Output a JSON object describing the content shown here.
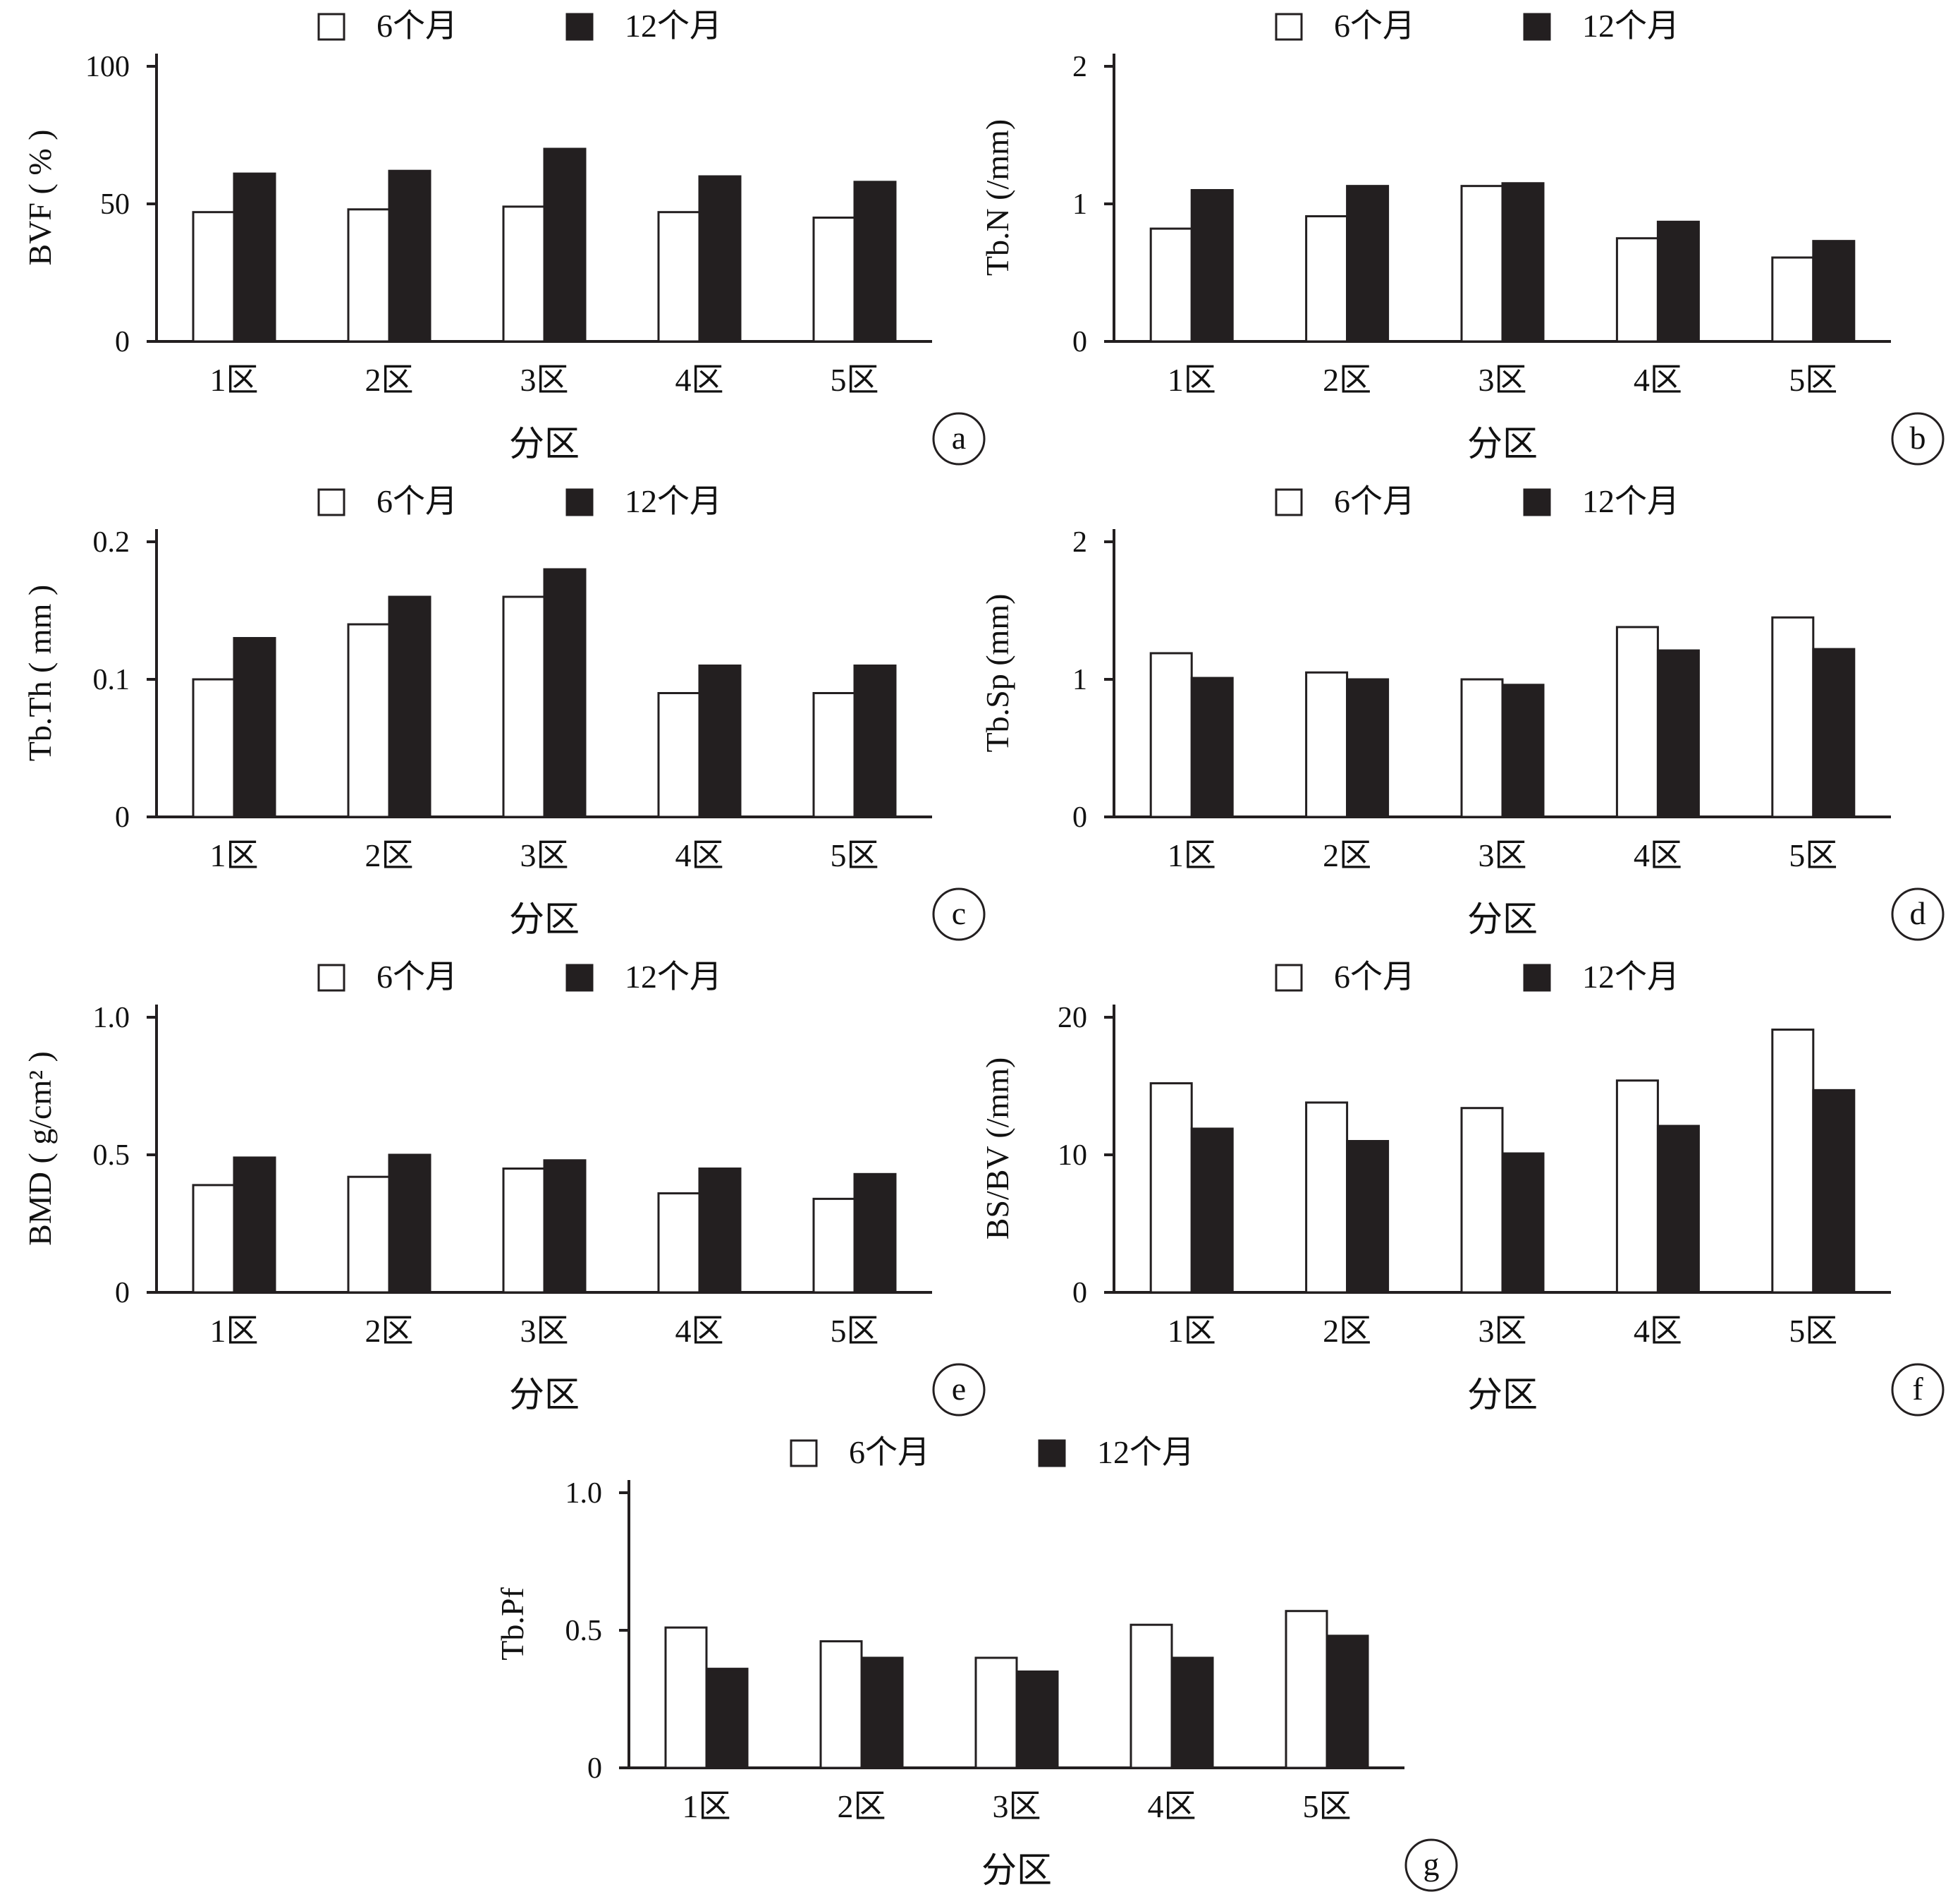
{
  "legend": {
    "six_month": "6个月",
    "twelve_month": "12个月"
  },
  "colors": {
    "six_month": "#ffffff",
    "twelve_month": "#231f20",
    "axis": "#231f20"
  },
  "chart_data": [
    {
      "panel": "a",
      "type": "bar",
      "categories": [
        "1区",
        "2区",
        "3区",
        "4区",
        "5区"
      ],
      "xlabel": "分区",
      "ylabel": "BVF ( % )",
      "ylim": [
        0,
        100
      ],
      "yticks": [
        "0",
        "50",
        "100"
      ],
      "ytick_values": [
        0,
        50,
        100
      ],
      "series": [
        {
          "name": "6个月",
          "values": [
            47,
            48,
            49,
            47,
            45
          ]
        },
        {
          "name": "12个月",
          "values": [
            61,
            62,
            70,
            60,
            58
          ]
        }
      ]
    },
    {
      "panel": "b",
      "type": "bar",
      "categories": [
        "1区",
        "2区",
        "3区",
        "4区",
        "5区"
      ],
      "xlabel": "分区",
      "ylabel": "Tb.N (/mm)",
      "ylim": [
        0,
        2
      ],
      "yticks": [
        "0",
        "1",
        "2"
      ],
      "ytick_values": [
        0,
        1,
        2
      ],
      "series": [
        {
          "name": "6个月",
          "values": [
            0.82,
            0.91,
            1.13,
            0.75,
            0.61
          ]
        },
        {
          "name": "12个月",
          "values": [
            1.1,
            1.13,
            1.15,
            0.87,
            0.73
          ]
        }
      ]
    },
    {
      "panel": "c",
      "type": "bar",
      "categories": [
        "1区",
        "2区",
        "3区",
        "4区",
        "5区"
      ],
      "xlabel": "分区",
      "ylabel": "Tb.Th ( mm )",
      "ylim": [
        0,
        0.2
      ],
      "yticks": [
        "0",
        "0.1",
        "0.2"
      ],
      "ytick_values": [
        0,
        0.1,
        0.2
      ],
      "series": [
        {
          "name": "6个月",
          "values": [
            0.1,
            0.14,
            0.16,
            0.09,
            0.09
          ]
        },
        {
          "name": "12个月",
          "values": [
            0.13,
            0.16,
            0.18,
            0.11,
            0.11
          ]
        }
      ]
    },
    {
      "panel": "d",
      "type": "bar",
      "categories": [
        "1区",
        "2区",
        "3区",
        "4区",
        "5区"
      ],
      "xlabel": "分区",
      "ylabel": "Tb.Sp (mm)",
      "ylim": [
        0,
        2
      ],
      "yticks": [
        "0",
        "1",
        "2"
      ],
      "ytick_values": [
        0,
        1,
        2
      ],
      "series": [
        {
          "name": "6个月",
          "values": [
            1.19,
            1.05,
            1.0,
            1.38,
            1.45
          ]
        },
        {
          "name": "12个月",
          "values": [
            1.01,
            1.0,
            0.96,
            1.21,
            1.22
          ]
        }
      ]
    },
    {
      "panel": "e",
      "type": "bar",
      "categories": [
        "1区",
        "2区",
        "3区",
        "4区",
        "5区"
      ],
      "xlabel": "分区",
      "ylabel": "BMD ( g/cm² )",
      "ylim": [
        0,
        1.0
      ],
      "yticks": [
        "0",
        "0.5",
        "1.0"
      ],
      "ytick_values": [
        0,
        0.5,
        1.0
      ],
      "series": [
        {
          "name": "6个月",
          "values": [
            0.39,
            0.42,
            0.45,
            0.36,
            0.34
          ]
        },
        {
          "name": "12个月",
          "values": [
            0.49,
            0.5,
            0.48,
            0.45,
            0.43
          ]
        }
      ]
    },
    {
      "panel": "f",
      "type": "bar",
      "categories": [
        "1区",
        "2区",
        "3区",
        "4区",
        "5区"
      ],
      "xlabel": "分区",
      "ylabel": "BS/BV (/mm)",
      "ylim": [
        0,
        20
      ],
      "yticks": [
        "0",
        "10",
        "20"
      ],
      "ytick_values": [
        0,
        10,
        20
      ],
      "series": [
        {
          "name": "6个月",
          "values": [
            15.2,
            13.8,
            13.4,
            15.4,
            19.1
          ]
        },
        {
          "name": "12个月",
          "values": [
            11.9,
            11.0,
            10.1,
            12.1,
            14.7
          ]
        }
      ]
    },
    {
      "panel": "g",
      "type": "bar",
      "categories": [
        "1区",
        "2区",
        "3区",
        "4区",
        "5区"
      ],
      "xlabel": "分区",
      "ylabel": "Tb.Pf",
      "ylim": [
        0,
        1.0
      ],
      "yticks": [
        "0",
        "0.5",
        "1.0"
      ],
      "ytick_values": [
        0,
        0.5,
        1.0
      ],
      "series": [
        {
          "name": "6个月",
          "values": [
            0.51,
            0.46,
            0.4,
            0.52,
            0.57
          ]
        },
        {
          "name": "12个月",
          "values": [
            0.36,
            0.4,
            0.35,
            0.4,
            0.48
          ]
        }
      ]
    }
  ]
}
